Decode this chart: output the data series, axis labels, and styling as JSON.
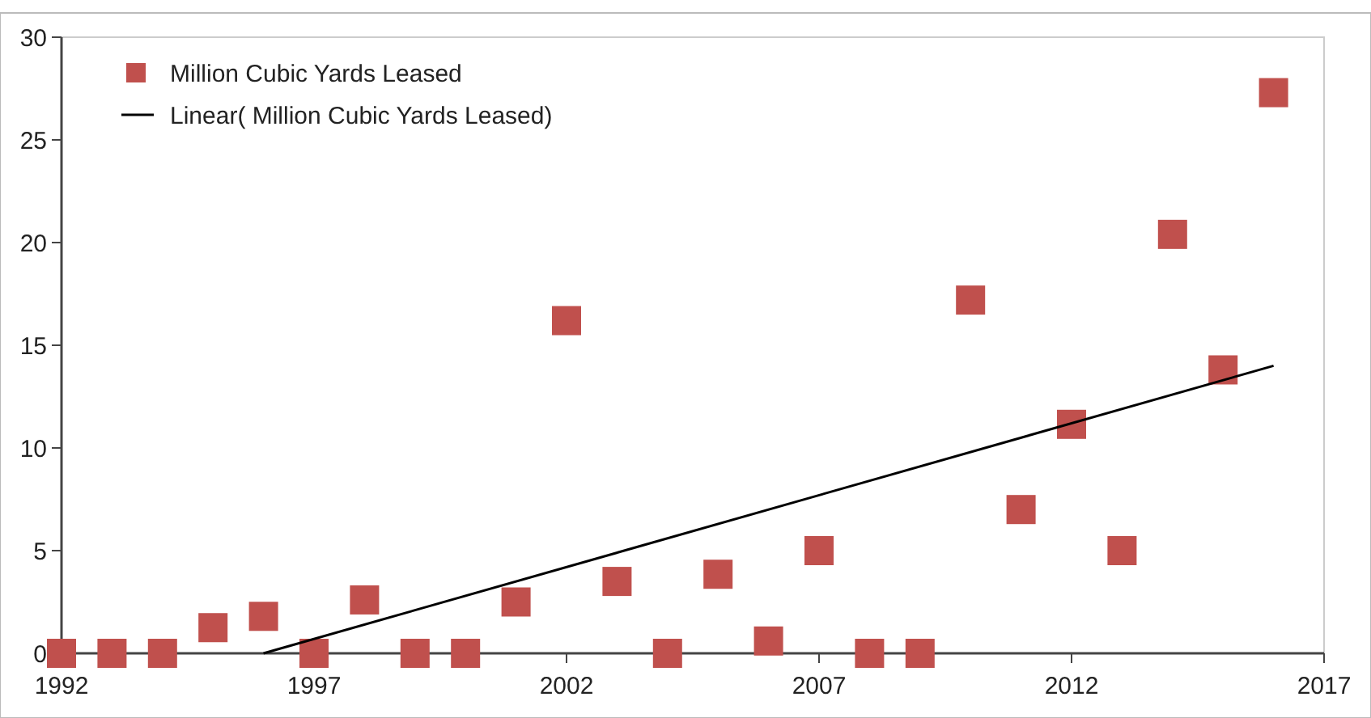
{
  "chart_data": {
    "type": "scatter",
    "x": [
      1992,
      1993,
      1994,
      1995,
      1996,
      1997,
      1998,
      1999,
      2000,
      2001,
      2002,
      2003,
      2004,
      2005,
      2006,
      2007,
      2008,
      2009,
      2010,
      2011,
      2012,
      2013,
      2014,
      2015,
      2016
    ],
    "series": [
      {
        "name": "Million Cubic Yards Leased",
        "color": "#c0504d",
        "values": [
          0,
          0,
          0,
          1.25,
          1.8,
          0,
          2.6,
          0,
          0,
          2.5,
          16.2,
          3.5,
          0,
          3.85,
          0.6,
          5.0,
          0,
          0,
          17.2,
          7.0,
          11.15,
          5.0,
          20.4,
          13.8,
          27.3
        ]
      },
      {
        "name": "Linear( Million Cubic Yards Leased)",
        "type": "line",
        "color": "#000000",
        "x": [
          1996,
          2016
        ],
        "values": [
          0,
          14.0
        ],
        "marker": "none"
      }
    ],
    "xlim": [
      1992,
      2017
    ],
    "xticks": [
      1992,
      1997,
      2002,
      2007,
      2012,
      2017
    ],
    "ylim": [
      0,
      30
    ],
    "yticks": [
      0,
      5,
      10,
      15,
      20,
      25,
      30
    ],
    "grid": false,
    "legend": "top left",
    "marker": "square"
  }
}
